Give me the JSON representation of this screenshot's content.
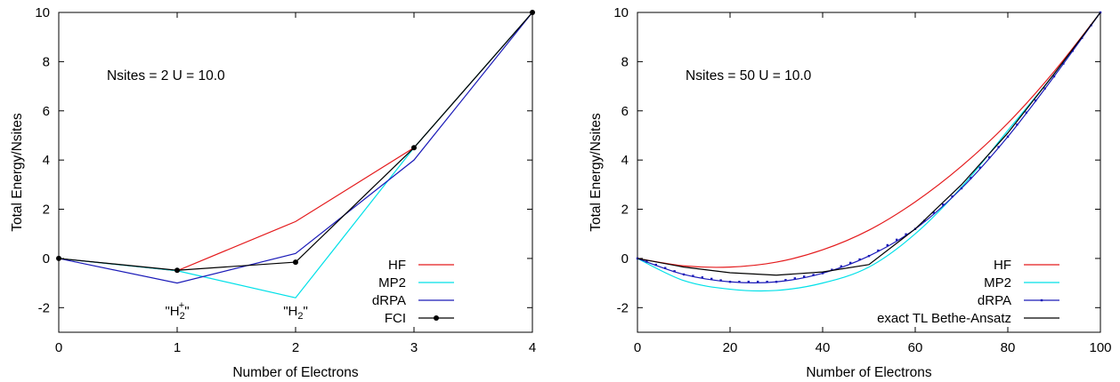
{
  "colors": {
    "HF": "#e41a1c",
    "MP2": "#00e0e8",
    "dRPA": "#1a1ab8",
    "FCI": "#000000",
    "exact TL Bethe-Ansatz": "#000000"
  },
  "chart_data": [
    {
      "type": "line",
      "title": "",
      "xlabel": "Number of Electrons",
      "ylabel": "Total Energy/Nsites",
      "xlim": [
        0,
        4
      ],
      "ylim": [
        -3,
        10
      ],
      "xticks": [
        0,
        1,
        2,
        3,
        4
      ],
      "yticks": [
        -2,
        0,
        2,
        4,
        6,
        8,
        10
      ],
      "grid": false,
      "legend": "bottom-right",
      "annotation": "Nsites = 2 U = 10.0",
      "point_labels": [
        {
          "text": "\"H",
          "sub": "2",
          "sup": "+",
          "tail": "\"",
          "x": 1
        },
        {
          "text": "\"H",
          "sub": "2",
          "sup": "",
          "tail": "\"",
          "x": 2
        }
      ],
      "series": [
        {
          "name": "HF",
          "x": [
            0,
            1,
            2,
            3,
            4
          ],
          "y": [
            0,
            -0.5,
            1.5,
            4.5,
            10
          ]
        },
        {
          "name": "MP2",
          "x": [
            0,
            1,
            2,
            3,
            4
          ],
          "y": [
            0,
            -0.5,
            -1.6,
            4.5,
            10
          ]
        },
        {
          "name": "dRPA",
          "x": [
            0,
            1,
            2,
            3,
            4
          ],
          "y": [
            0,
            -1.0,
            0.2,
            4.0,
            10
          ]
        },
        {
          "name": "FCI",
          "x": [
            0,
            1,
            2,
            3,
            4
          ],
          "y": [
            0,
            -0.48,
            -0.15,
            4.5,
            10
          ],
          "markers": true
        }
      ]
    },
    {
      "type": "line",
      "title": "",
      "xlabel": "Number of Electrons",
      "ylabel": "Total Energy/Nsites",
      "xlim": [
        0,
        100
      ],
      "ylim": [
        -3,
        10
      ],
      "xticks": [
        0,
        20,
        40,
        60,
        80,
        100
      ],
      "yticks": [
        -2,
        0,
        2,
        4,
        6,
        8,
        10
      ],
      "grid": false,
      "legend": "bottom-right",
      "annotation": "Nsites = 50  U = 10.0",
      "series": [
        {
          "name": "HF",
          "x": [
            0,
            10,
            20,
            30,
            40,
            50,
            60,
            70,
            80,
            90,
            100
          ],
          "y": [
            0,
            -0.3,
            -0.35,
            -0.15,
            0.35,
            1.15,
            2.3,
            3.75,
            5.5,
            7.6,
            10
          ]
        },
        {
          "name": "MP2",
          "x": [
            0,
            10,
            20,
            30,
            40,
            50,
            60,
            70,
            80,
            90,
            100
          ],
          "y": [
            0,
            -0.9,
            -1.25,
            -1.3,
            -1.0,
            -0.35,
            1.0,
            2.9,
            5.2,
            7.5,
            10
          ]
        },
        {
          "name": "dRPA",
          "x": [
            0,
            10,
            20,
            30,
            40,
            50,
            60,
            70,
            80,
            90,
            100
          ],
          "y": [
            0,
            -0.65,
            -0.95,
            -0.95,
            -0.6,
            0.1,
            1.2,
            2.85,
            4.95,
            7.4,
            10
          ],
          "markers": true
        },
        {
          "name": "exact TL Bethe-Ansatz",
          "x": [
            0,
            10,
            20,
            30,
            40,
            50,
            60,
            70,
            80,
            90,
            100
          ],
          "y": [
            0,
            -0.35,
            -0.58,
            -0.68,
            -0.55,
            -0.25,
            1.2,
            3.0,
            5.1,
            7.5,
            10
          ]
        }
      ]
    }
  ]
}
